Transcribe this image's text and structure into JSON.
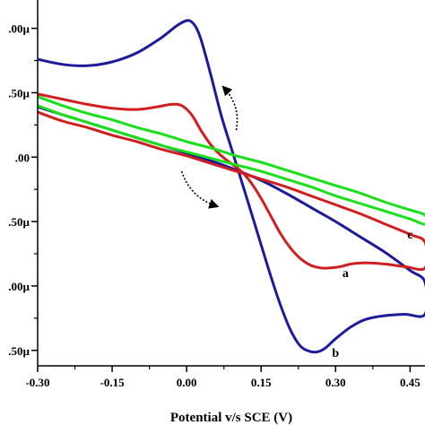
{
  "chart_data": {
    "type": "line",
    "title": "",
    "xlabel": "Potential v/s SCE (V)",
    "ylabel": "",
    "xlim": [
      -0.3,
      0.48
    ],
    "ylim": [
      -1.62,
      1.22
    ],
    "xticks": [
      {
        "value": -0.3,
        "label": "-0.30"
      },
      {
        "value": -0.15,
        "label": "-0.15"
      },
      {
        "value": 0.0,
        "label": "0.00"
      },
      {
        "value": 0.15,
        "label": "0.15"
      },
      {
        "value": 0.3,
        "label": "0.30"
      },
      {
        "value": 0.45,
        "label": "0.45"
      }
    ],
    "yticks": [
      {
        "value": 1.0,
        "label": ".00µ"
      },
      {
        "value": 0.5,
        "label": ".50µ"
      },
      {
        "value": 0.0,
        "label": ".00"
      },
      {
        "value": -0.5,
        "label": ".50µ"
      },
      {
        "value": -1.0,
        "label": ".00µ"
      },
      {
        "value": -1.5,
        "label": ".50µ"
      }
    ],
    "grid": false,
    "series": [
      {
        "name": "b",
        "color": "#1c1c9a",
        "label_at": [
          0.3,
          -1.55
        ],
        "x": [
          -0.3,
          -0.25,
          -0.2,
          -0.15,
          -0.1,
          -0.05,
          -0.02,
          0.0,
          0.01,
          0.02,
          0.03,
          0.05,
          0.07,
          0.09,
          0.11,
          0.13,
          0.15,
          0.17,
          0.19,
          0.21,
          0.23,
          0.25,
          0.265,
          0.28,
          0.3,
          0.33,
          0.36,
          0.4,
          0.44,
          0.48,
          0.48,
          0.45,
          0.4,
          0.35,
          0.3,
          0.25,
          0.2,
          0.15,
          0.1,
          0.05,
          0.0,
          -0.05,
          -0.1,
          -0.15,
          -0.2,
          -0.25,
          -0.3
        ],
        "y": [
          0.76,
          0.72,
          0.71,
          0.74,
          0.81,
          0.93,
          1.02,
          1.06,
          1.05,
          1.0,
          0.9,
          0.62,
          0.32,
          0.07,
          -0.18,
          -0.43,
          -0.68,
          -0.93,
          -1.16,
          -1.35,
          -1.47,
          -1.51,
          -1.51,
          -1.48,
          -1.41,
          -1.32,
          -1.26,
          -1.23,
          -1.22,
          -1.22,
          -0.97,
          -0.88,
          -0.74,
          -0.62,
          -0.5,
          -0.39,
          -0.28,
          -0.18,
          -0.1,
          -0.03,
          0.03,
          0.09,
          0.15,
          0.21,
          0.27,
          0.33,
          0.39
        ]
      },
      {
        "name": "a",
        "color": "#d11f1f",
        "label_at": [
          0.32,
          -0.93
        ],
        "x": [
          -0.3,
          -0.25,
          -0.2,
          -0.15,
          -0.1,
          -0.06,
          -0.03,
          -0.01,
          0.01,
          0.03,
          0.05,
          0.07,
          0.09,
          0.11,
          0.13,
          0.15,
          0.17,
          0.19,
          0.21,
          0.23,
          0.25,
          0.27,
          0.29,
          0.31,
          0.33,
          0.36,
          0.4,
          0.44,
          0.48,
          0.48,
          0.45,
          0.4,
          0.35,
          0.3,
          0.25,
          0.2,
          0.15,
          0.1,
          0.05,
          0.0,
          -0.05,
          -0.1,
          -0.15,
          -0.2,
          -0.25,
          -0.3
        ],
        "y": [
          0.49,
          0.45,
          0.41,
          0.38,
          0.37,
          0.39,
          0.41,
          0.4,
          0.33,
          0.2,
          0.09,
          0.01,
          -0.05,
          -0.11,
          -0.2,
          -0.32,
          -0.46,
          -0.6,
          -0.71,
          -0.79,
          -0.84,
          -0.86,
          -0.86,
          -0.85,
          -0.83,
          -0.82,
          -0.83,
          -0.85,
          -0.86,
          -0.66,
          -0.6,
          -0.52,
          -0.44,
          -0.37,
          -0.3,
          -0.23,
          -0.17,
          -0.11,
          -0.05,
          0.01,
          0.06,
          0.12,
          0.17,
          0.23,
          0.28,
          0.35
        ]
      },
      {
        "name": "c",
        "color": "#19e01a",
        "label_at": [
          0.45,
          -0.63
        ],
        "x": [
          -0.3,
          -0.25,
          -0.2,
          -0.15,
          -0.1,
          -0.05,
          0.0,
          0.05,
          0.1,
          0.15,
          0.2,
          0.25,
          0.3,
          0.35,
          0.4,
          0.45,
          0.48,
          0.48,
          0.45,
          0.4,
          0.35,
          0.3,
          0.25,
          0.2,
          0.15,
          0.1,
          0.05,
          0.0,
          -0.05,
          -0.1,
          -0.15,
          -0.2,
          -0.25,
          -0.3
        ],
        "y": [
          0.47,
          0.4,
          0.34,
          0.29,
          0.23,
          0.18,
          0.12,
          0.07,
          0.01,
          -0.04,
          -0.1,
          -0.16,
          -0.22,
          -0.28,
          -0.35,
          -0.41,
          -0.45,
          -0.52,
          -0.48,
          -0.42,
          -0.36,
          -0.3,
          -0.23,
          -0.17,
          -0.11,
          -0.06,
          -0.01,
          0.04,
          0.09,
          0.15,
          0.21,
          0.27,
          0.33,
          0.4
        ]
      }
    ],
    "arrows": [
      {
        "from": [
          -0.01,
          -0.11
        ],
        "to": [
          0.06,
          -0.38
        ]
      },
      {
        "from": [
          0.1,
          0.21
        ],
        "to": [
          0.075,
          0.54
        ]
      }
    ]
  }
}
